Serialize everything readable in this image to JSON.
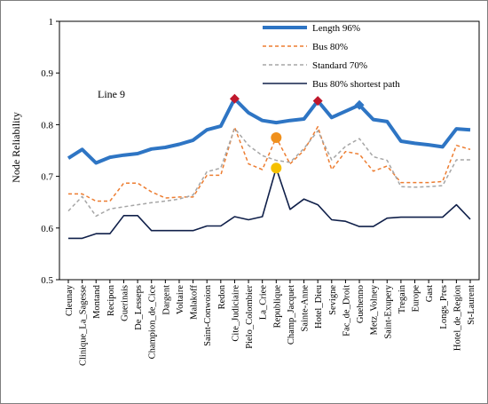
{
  "chart_data": {
    "type": "line",
    "title": "",
    "xlabel": "",
    "ylabel": "Node Reliability",
    "annotation": "Line 9",
    "ylim": [
      0.5,
      1
    ],
    "yticks": [
      0.5,
      0.6,
      0.7,
      0.8,
      0.9,
      1
    ],
    "ytick_labels": [
      "0.5",
      "0.6",
      "0.7",
      "0.8",
      "0.9",
      "1"
    ],
    "grid": false,
    "legend_position": "top-right",
    "categories": [
      "Cleunay",
      "Clinique_La_Sagesse",
      "Montand",
      "Recipon",
      "Guerinais",
      "De_Lesseps",
      "Champion_de_Cice",
      "Dargent",
      "Voltaire",
      "Malakoff",
      "Saint-Conwoion",
      "Redon",
      "Cite_Judiciaire",
      "Pielo_Colombier",
      "La_Criee",
      "Republique",
      "Champ_Jacquet",
      "Sainte-Anne",
      "Hotel_Dieu",
      "Sevigne",
      "Fac_de_Droit",
      "Guehenno",
      "Metz_Volney",
      "Saint-Exupery",
      "Tregain",
      "Europe",
      "Gast",
      "Longs_Pres",
      "Hotel_de_Region",
      "St-Laurent"
    ],
    "series": [
      {
        "name": "Length 96%",
        "color": "#2e75c4",
        "style": "solid-thick",
        "values": [
          0.735,
          0.752,
          0.726,
          0.737,
          0.741,
          0.744,
          0.753,
          0.756,
          0.762,
          0.77,
          0.79,
          0.797,
          0.85,
          0.823,
          0.808,
          0.804,
          0.808,
          0.811,
          0.846,
          0.814,
          0.826,
          0.838,
          0.81,
          0.806,
          0.768,
          0.764,
          0.761,
          0.757,
          0.792,
          0.79
        ]
      },
      {
        "name": "Bus 80%",
        "color": "#ed7d31",
        "style": "dashed",
        "values": [
          0.666,
          0.666,
          0.652,
          0.652,
          0.687,
          0.687,
          0.67,
          0.658,
          0.66,
          0.66,
          0.702,
          0.702,
          0.795,
          0.724,
          0.713,
          0.775,
          0.724,
          0.75,
          0.796,
          0.713,
          0.748,
          0.743,
          0.71,
          0.72,
          0.688,
          0.688,
          0.688,
          0.69,
          0.76,
          0.752
        ]
      },
      {
        "name": "Standard 70%",
        "color": "#a6a6a6",
        "style": "dashed",
        "values": [
          0.633,
          0.661,
          0.623,
          0.637,
          0.641,
          0.645,
          0.649,
          0.652,
          0.656,
          0.664,
          0.709,
          0.716,
          0.793,
          0.76,
          0.74,
          0.731,
          0.727,
          0.754,
          0.788,
          0.732,
          0.758,
          0.773,
          0.738,
          0.731,
          0.68,
          0.679,
          0.68,
          0.682,
          0.732,
          0.732
        ]
      },
      {
        "name": "Bus 80% shortest path",
        "color": "#10204a",
        "style": "solid",
        "values": [
          0.58,
          0.58,
          0.589,
          0.589,
          0.624,
          0.624,
          0.595,
          0.595,
          0.595,
          0.595,
          0.604,
          0.604,
          0.622,
          0.616,
          0.622,
          0.716,
          0.636,
          0.656,
          0.645,
          0.616,
          0.613,
          0.603,
          0.603,
          0.619,
          0.621,
          0.621,
          0.621,
          0.621,
          0.645,
          0.617
        ]
      }
    ],
    "highlights": [
      {
        "category": "Cite_Judiciaire",
        "value": 0.85,
        "marker": "diamond",
        "color": "#c0182c"
      },
      {
        "category": "Hotel_Dieu",
        "value": 0.846,
        "marker": "diamond",
        "color": "#c0182c"
      },
      {
        "category": "Guehenno",
        "value": 0.838,
        "marker": "diamond",
        "color": "#2e75c4"
      },
      {
        "category": "Republique",
        "value": 0.775,
        "marker": "circle",
        "color": "#f0901c"
      },
      {
        "category": "Republique",
        "value": 0.716,
        "marker": "circle",
        "color": "#f5c000"
      }
    ]
  }
}
